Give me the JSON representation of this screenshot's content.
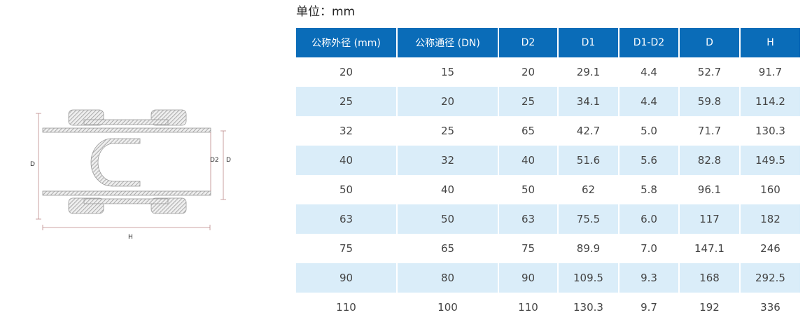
{
  "diagram": {
    "labels": {
      "d": "D",
      "d2": "D2",
      "d1": "D1",
      "h": "H"
    }
  },
  "unit_label": "单位：mm",
  "table": {
    "header_color": "#0a6cb8",
    "alt_row_color": "#daedf9",
    "columns": [
      "公称外径 (mm)",
      "公称通径 (DN)",
      "D2",
      "D1",
      "D1-D2",
      "D",
      "H"
    ],
    "rows": [
      [
        "20",
        "15",
        "20",
        "29.1",
        "4.4",
        "52.7",
        "91.7"
      ],
      [
        "25",
        "20",
        "25",
        "34.1",
        "4.4",
        "59.8",
        "114.2"
      ],
      [
        "32",
        "25",
        "65",
        "42.7",
        "5.0",
        "71.7",
        "130.3"
      ],
      [
        "40",
        "32",
        "40",
        "51.6",
        "5.6",
        "82.8",
        "149.5"
      ],
      [
        "50",
        "40",
        "50",
        "62",
        "5.8",
        "96.1",
        "160"
      ],
      [
        "63",
        "50",
        "63",
        "75.5",
        "6.0",
        "117",
        "182"
      ],
      [
        "75",
        "65",
        "75",
        "89.9",
        "7.0",
        "147.1",
        "246"
      ],
      [
        "90",
        "80",
        "90",
        "109.5",
        "9.3",
        "168",
        "292.5"
      ],
      [
        "110",
        "100",
        "110",
        "130.3",
        "9.7",
        "192",
        "336"
      ]
    ]
  }
}
